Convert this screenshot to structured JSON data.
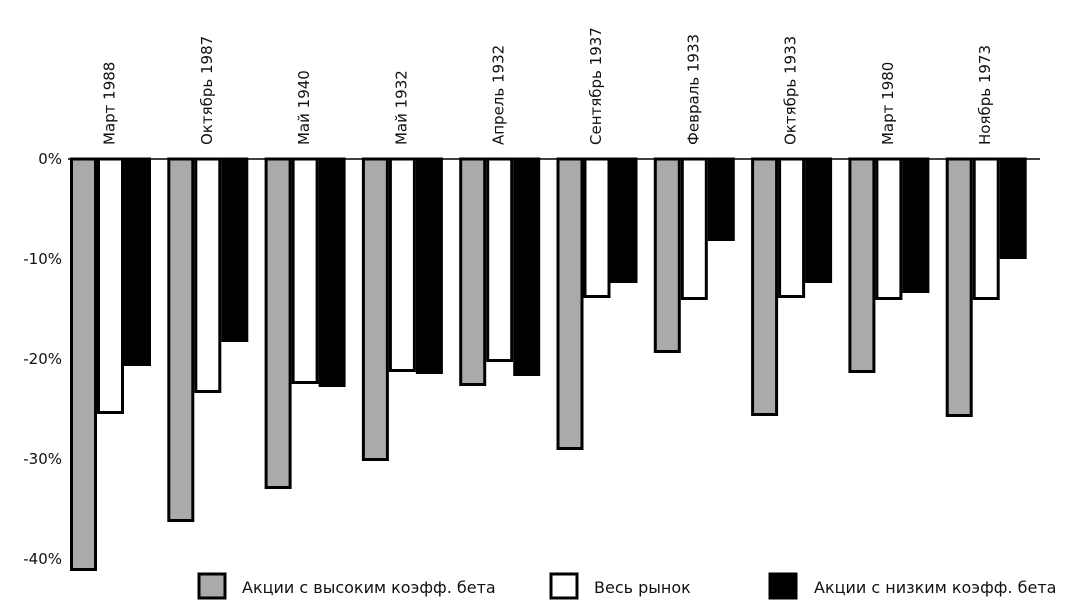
{
  "chart_data": {
    "type": "bar",
    "categories": [
      "Март 1988",
      "Октябрь 1987",
      "Май 1940",
      "Май 1932",
      "Апрель 1932",
      "Сентябрь 1937",
      "Февраль 1933",
      "Октябрь 1933",
      "Март 1980",
      "Ноябрь 1973"
    ],
    "series": [
      {
        "name": "Акции с высоким коэфф. бета",
        "color": "#aaaaaa",
        "values": [
          -41.2,
          -36.3,
          -33.0,
          -30.2,
          -22.7,
          -29.1,
          -19.4,
          -25.7,
          -21.4,
          -25.8
        ]
      },
      {
        "name": "Весь рынок",
        "color": "#ffffff",
        "values": [
          -25.5,
          -23.4,
          -22.5,
          -21.3,
          -20.3,
          -13.9,
          -14.1,
          -13.9,
          -14.1,
          -14.1
        ]
      },
      {
        "name": "Акции с низким коэфф. бета",
        "color": "#000000",
        "values": [
          -20.7,
          -18.3,
          -22.8,
          -21.5,
          -21.7,
          -12.4,
          -8.2,
          -12.4,
          -13.4,
          -10.0
        ]
      }
    ],
    "y_ticks": [
      0,
      -10,
      -20,
      -30,
      -40
    ],
    "y_tick_labels": [
      "0%",
      "-10%",
      "-20%",
      "-30%",
      "-40%"
    ],
    "ylim": [
      -42,
      0
    ],
    "grid": false,
    "legend_position": "bottom"
  }
}
